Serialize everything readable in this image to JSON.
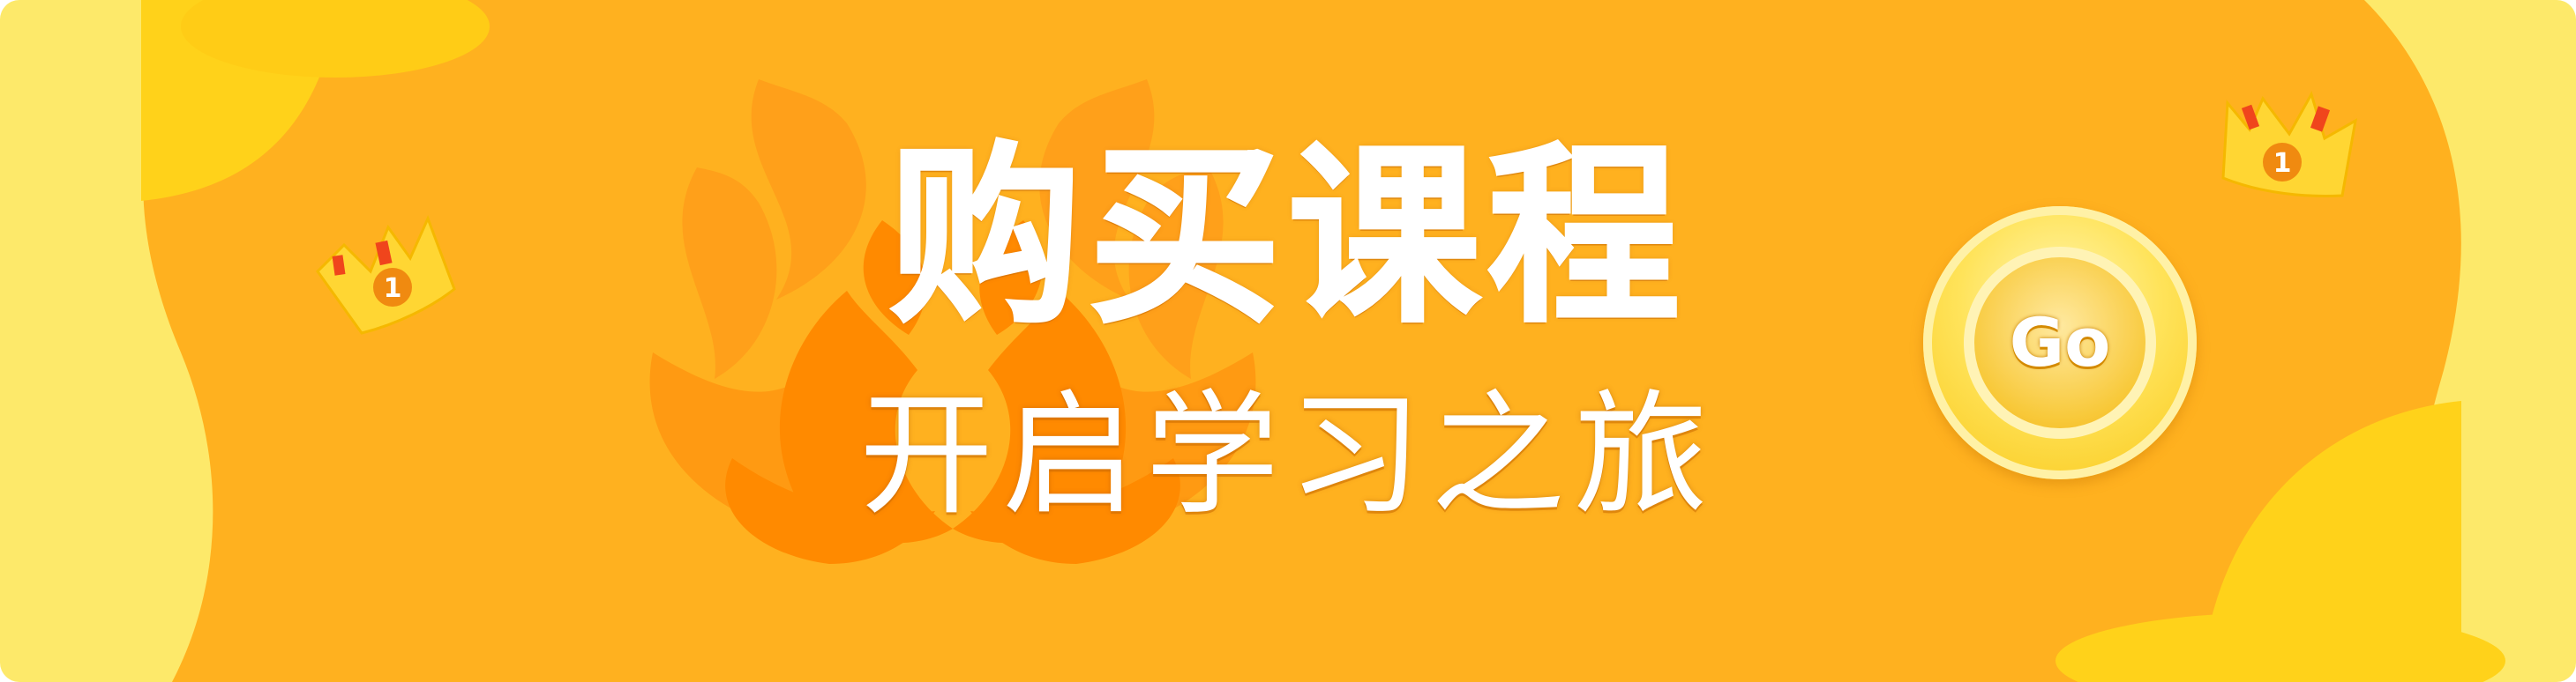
{
  "banner": {
    "title_line_1": "购买课程",
    "title_line_2": "开启学习之旅",
    "go_button_label": "Go",
    "crown_left_badge": "1",
    "crown_right_badge": "1"
  },
  "colors": {
    "outer_yellow": "#fde96a",
    "main_orange": "#ffb11f",
    "flame_orange": "#ff9a12",
    "flame_deep": "#ff8a00",
    "blob_yellow": "#ffd21a",
    "crown_yellow": "#ffd633",
    "crown_red": "#f0451c",
    "badge_orange": "#f08a10",
    "text": "#ffffff"
  },
  "icons": [
    "left-flame-decoration",
    "right-flame-decoration",
    "crown-icon",
    "number-badge-icon"
  ]
}
